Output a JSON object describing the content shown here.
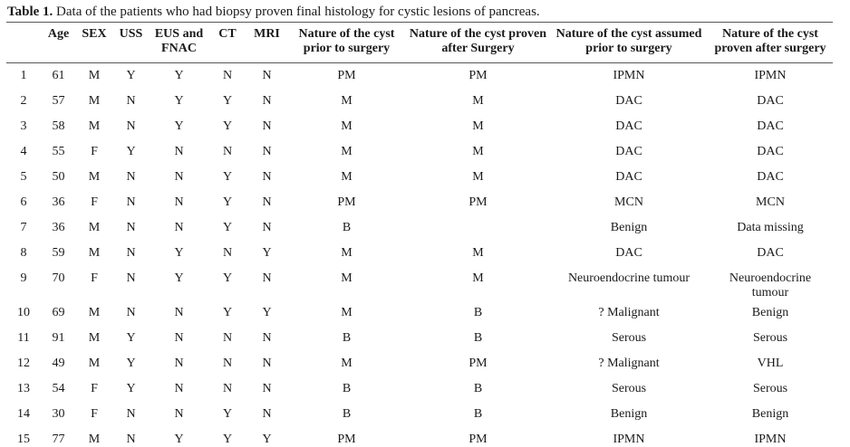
{
  "caption": {
    "label": "Table 1.",
    "text": " Data of the patients who had biopsy proven final histology for cystic lesions of pancreas."
  },
  "table": {
    "columns": [
      "",
      "Age",
      "SEX",
      "USS",
      "EUS and FNAC",
      "CT",
      "MRI",
      "Nature of the cyst prior to surgery",
      "Nature of the cyst proven after Surgery",
      "Nature of the cyst assumed prior to surgery",
      "Nature of the cyst proven after surgery"
    ],
    "rows": [
      [
        "1",
        "61",
        "M",
        "Y",
        "Y",
        "N",
        "N",
        "PM",
        "PM",
        "IPMN",
        "IPMN"
      ],
      [
        "2",
        "57",
        "M",
        "N",
        "Y",
        "Y",
        "N",
        "M",
        "M",
        "DAC",
        "DAC"
      ],
      [
        "3",
        "58",
        "M",
        "N",
        "Y",
        "Y",
        "N",
        "M",
        "M",
        "DAC",
        "DAC"
      ],
      [
        "4",
        "55",
        "F",
        "Y",
        "N",
        "N",
        "N",
        "M",
        "M",
        "DAC",
        "DAC"
      ],
      [
        "5",
        "50",
        "M",
        "N",
        "N",
        "Y",
        "N",
        "M",
        "M",
        "DAC",
        "DAC"
      ],
      [
        "6",
        "36",
        "F",
        "N",
        "N",
        "Y",
        "N",
        "PM",
        "PM",
        "MCN",
        "MCN"
      ],
      [
        "7",
        "36",
        "M",
        "N",
        "N",
        "Y",
        "N",
        "B",
        "",
        "Benign",
        "Data missing"
      ],
      [
        "8",
        "59",
        "M",
        "N",
        "Y",
        "N",
        "Y",
        "M",
        "M",
        "DAC",
        "DAC"
      ],
      [
        "9",
        "70",
        "F",
        "N",
        "Y",
        "Y",
        "N",
        "M",
        "M",
        "Neuroendocrine tumour",
        "Neuroendocrine tumour"
      ],
      [
        "10",
        "69",
        "M",
        "N",
        "N",
        "Y",
        "Y",
        "M",
        "B",
        "? Malignant",
        "Benign"
      ],
      [
        "11",
        "91",
        "M",
        "Y",
        "N",
        "N",
        "N",
        "B",
        "B",
        "Serous",
        "Serous"
      ],
      [
        "12",
        "49",
        "M",
        "Y",
        "N",
        "N",
        "N",
        "M",
        "PM",
        "? Malignant",
        "VHL"
      ],
      [
        "13",
        "54",
        "F",
        "Y",
        "N",
        "N",
        "N",
        "B",
        "B",
        "Serous",
        "Serous"
      ],
      [
        "14",
        "30",
        "F",
        "N",
        "N",
        "Y",
        "N",
        "B",
        "B",
        "Benign",
        "Benign"
      ],
      [
        "15",
        "77",
        "M",
        "N",
        "Y",
        "Y",
        "Y",
        "PM",
        "PM",
        "IPMN",
        "IPMN"
      ]
    ]
  },
  "colors": {
    "text": "#1a1a1a",
    "rule": "#565656",
    "background": "#ffffff"
  }
}
